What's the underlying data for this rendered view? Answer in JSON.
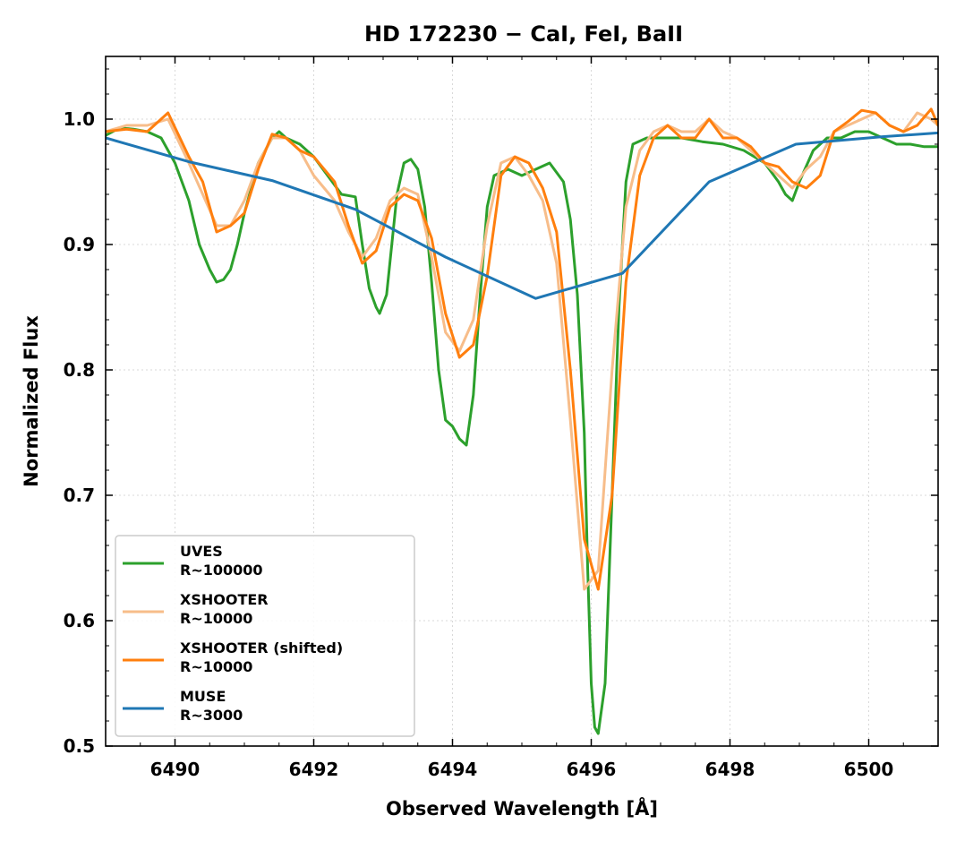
{
  "chart_data": {
    "type": "line",
    "title": "HD 172230 − CaI, FeI, BaII",
    "xlabel": "Observed Wavelength [Å]",
    "ylabel": "Normalized Flux",
    "xlim": [
      6489.0,
      6501.0
    ],
    "ylim": [
      0.5,
      1.05
    ],
    "xticks": [
      6490,
      6492,
      6494,
      6496,
      6498,
      6500
    ],
    "xtick_labels": [
      "6490",
      "6492",
      "6494",
      "6496",
      "6498",
      "6500"
    ],
    "yticks": [
      0.5,
      0.6,
      0.7,
      0.8,
      0.9,
      1.0
    ],
    "ytick_labels": [
      "0.5",
      "0.6",
      "0.7",
      "0.8",
      "0.9",
      "1.0"
    ],
    "grid": true,
    "legend_position": "lower-left",
    "series": [
      {
        "name": "UVES",
        "label_line2": "R~100000",
        "color": "#2ca02c",
        "x": [
          6489.0,
          6489.2,
          6489.4,
          6489.6,
          6489.8,
          6490.0,
          6490.2,
          6490.35,
          6490.5,
          6490.6,
          6490.7,
          6490.8,
          6490.9,
          6491.0,
          6491.2,
          6491.4,
          6491.5,
          6491.6,
          6491.8,
          6492.0,
          6492.2,
          6492.4,
          6492.6,
          6492.7,
          6492.8,
          6492.9,
          6492.95,
          6493.05,
          6493.2,
          6493.3,
          6493.4,
          6493.5,
          6493.6,
          6493.7,
          6493.8,
          6493.9,
          6494.0,
          6494.1,
          6494.2,
          6494.3,
          6494.4,
          6494.5,
          6494.6,
          6494.8,
          6495.0,
          6495.2,
          6495.4,
          6495.6,
          6495.7,
          6495.8,
          6495.9,
          6495.95,
          6496.0,
          6496.05,
          6496.1,
          6496.2,
          6496.3,
          6496.4,
          6496.5,
          6496.6,
          6496.8,
          6497.0,
          6497.3,
          6497.6,
          6497.9,
          6498.2,
          6498.5,
          6498.7,
          6498.8,
          6498.9,
          6499.0,
          6499.2,
          6499.4,
          6499.6,
          6499.8,
          6500.0,
          6500.2,
          6500.4,
          6500.6,
          6500.8,
          6501.0
        ],
        "y": [
          0.987,
          0.993,
          0.992,
          0.99,
          0.985,
          0.965,
          0.935,
          0.9,
          0.88,
          0.87,
          0.872,
          0.88,
          0.9,
          0.925,
          0.965,
          0.985,
          0.99,
          0.985,
          0.98,
          0.97,
          0.955,
          0.94,
          0.938,
          0.9,
          0.865,
          0.85,
          0.845,
          0.86,
          0.94,
          0.965,
          0.968,
          0.96,
          0.93,
          0.87,
          0.8,
          0.76,
          0.755,
          0.745,
          0.74,
          0.78,
          0.86,
          0.93,
          0.955,
          0.96,
          0.955,
          0.96,
          0.965,
          0.95,
          0.92,
          0.86,
          0.75,
          0.64,
          0.55,
          0.515,
          0.51,
          0.55,
          0.7,
          0.85,
          0.95,
          0.98,
          0.985,
          0.985,
          0.985,
          0.982,
          0.98,
          0.975,
          0.965,
          0.95,
          0.94,
          0.935,
          0.95,
          0.975,
          0.985,
          0.985,
          0.99,
          0.99,
          0.985,
          0.98,
          0.98,
          0.978,
          0.978
        ]
      },
      {
        "name": "XSHOOTER",
        "label_line2": "R~10000",
        "color": "#f7bd8a",
        "x": [
          6489.0,
          6489.3,
          6489.6,
          6489.9,
          6490.2,
          6490.4,
          6490.6,
          6490.8,
          6491.0,
          6491.2,
          6491.4,
          6491.6,
          6491.8,
          6492.0,
          6492.3,
          6492.5,
          6492.7,
          6492.9,
          6493.1,
          6493.3,
          6493.5,
          6493.7,
          6493.9,
          6494.1,
          6494.3,
          6494.5,
          6494.7,
          6494.9,
          6495.1,
          6495.3,
          6495.5,
          6495.7,
          6495.9,
          6496.1,
          6496.3,
          6496.5,
          6496.7,
          6496.9,
          6497.1,
          6497.3,
          6497.5,
          6497.7,
          6497.9,
          6498.1,
          6498.3,
          6498.5,
          6498.7,
          6498.9,
          6499.1,
          6499.3,
          6499.5,
          6499.7,
          6499.9,
          6500.1,
          6500.3,
          6500.5,
          6500.7,
          6500.9,
          6501.0
        ],
        "y": [
          0.99,
          0.995,
          0.995,
          1.0,
          0.965,
          0.94,
          0.915,
          0.915,
          0.935,
          0.965,
          0.985,
          0.985,
          0.975,
          0.955,
          0.935,
          0.91,
          0.89,
          0.905,
          0.935,
          0.945,
          0.94,
          0.89,
          0.83,
          0.815,
          0.84,
          0.915,
          0.965,
          0.97,
          0.955,
          0.935,
          0.885,
          0.76,
          0.625,
          0.64,
          0.8,
          0.93,
          0.975,
          0.99,
          0.995,
          0.99,
          0.99,
          1.0,
          0.99,
          0.985,
          0.975,
          0.965,
          0.955,
          0.945,
          0.96,
          0.97,
          0.99,
          0.995,
          1.0,
          1.005,
          0.995,
          0.99,
          1.005,
          1.0,
          0.995
        ]
      },
      {
        "name": "XSHOOTER (shifted)",
        "label_line2": "R~10000",
        "color": "#ff7f0e",
        "x": [
          6489.0,
          6489.3,
          6489.6,
          6489.9,
          6490.2,
          6490.4,
          6490.6,
          6490.8,
          6491.0,
          6491.2,
          6491.4,
          6491.6,
          6491.8,
          6492.0,
          6492.3,
          6492.5,
          6492.7,
          6492.9,
          6493.1,
          6493.3,
          6493.5,
          6493.7,
          6493.9,
          6494.1,
          6494.3,
          6494.5,
          6494.7,
          6494.9,
          6495.1,
          6495.3,
          6495.5,
          6495.7,
          6495.9,
          6496.1,
          6496.3,
          6496.5,
          6496.7,
          6496.9,
          6497.1,
          6497.3,
          6497.5,
          6497.7,
          6497.9,
          6498.1,
          6498.3,
          6498.5,
          6498.7,
          6498.9,
          6499.1,
          6499.3,
          6499.5,
          6499.7,
          6499.9,
          6500.1,
          6500.3,
          6500.5,
          6500.7,
          6500.9,
          6501.0
        ],
        "y": [
          0.99,
          0.992,
          0.99,
          1.005,
          0.97,
          0.95,
          0.91,
          0.915,
          0.925,
          0.96,
          0.988,
          0.985,
          0.975,
          0.97,
          0.95,
          0.915,
          0.885,
          0.895,
          0.93,
          0.94,
          0.935,
          0.905,
          0.845,
          0.81,
          0.82,
          0.875,
          0.955,
          0.97,
          0.965,
          0.945,
          0.91,
          0.8,
          0.665,
          0.625,
          0.7,
          0.87,
          0.955,
          0.985,
          0.995,
          0.985,
          0.985,
          1.0,
          0.985,
          0.985,
          0.978,
          0.965,
          0.962,
          0.95,
          0.945,
          0.955,
          0.99,
          0.998,
          1.007,
          1.005,
          0.995,
          0.99,
          0.995,
          1.008,
          0.995
        ]
      },
      {
        "name": "MUSE",
        "label_line2": "R~3000",
        "color": "#1f77b4",
        "x": [
          6489.0,
          6490.2,
          6491.4,
          6492.6,
          6493.9,
          6495.2,
          6496.45,
          6497.7,
          6498.95,
          6500.2,
          6501.0
        ],
        "y": [
          0.985,
          0.966,
          0.951,
          0.928,
          0.89,
          0.857,
          0.877,
          0.95,
          0.98,
          0.986,
          0.989
        ]
      }
    ]
  }
}
